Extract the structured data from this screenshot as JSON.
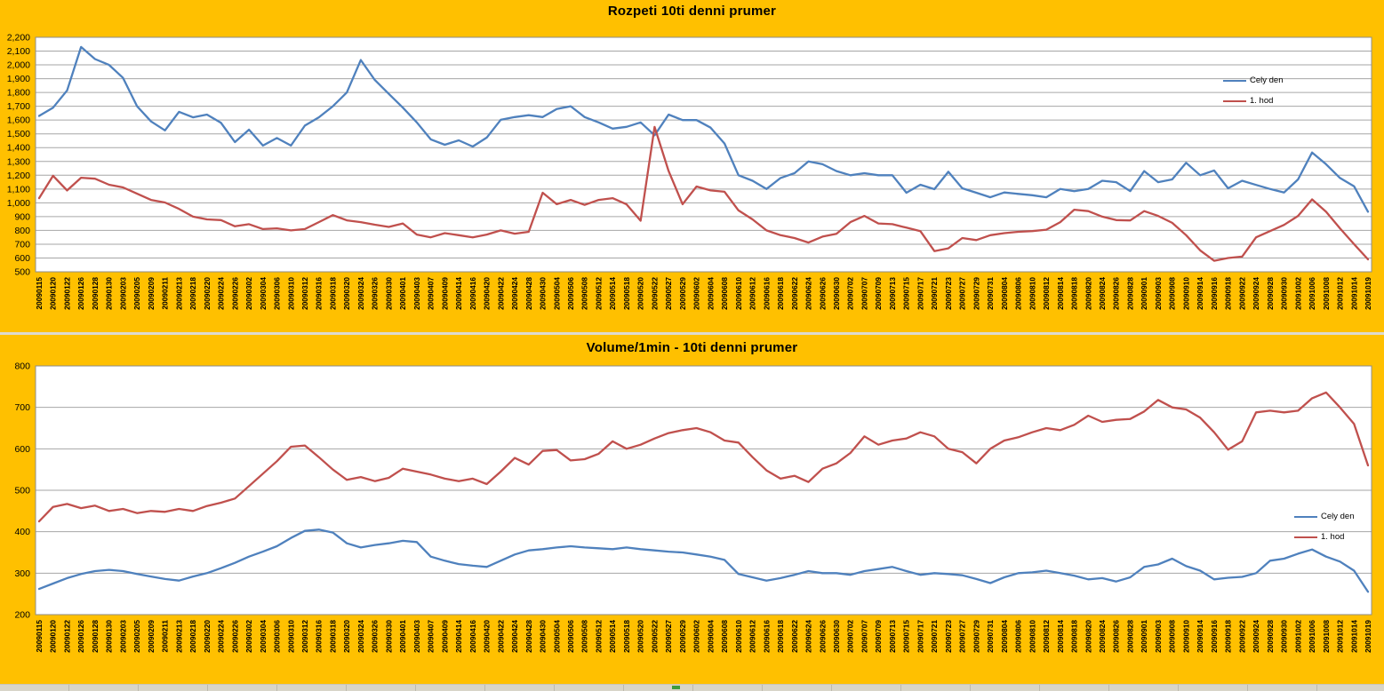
{
  "page": {
    "background_color": "#FFC000",
    "plot_background_color": "#FFFFFF",
    "gridline_color": "#A6A6A6",
    "plot_border_color": "#8C8C8C",
    "sheet_strip_color": "#D8D5C9",
    "sheet_marker_color": "#3E9B3E"
  },
  "chart_data": [
    {
      "type": "line",
      "title": "Rozpeti 10ti denni prumer",
      "ylim": [
        500,
        2200
      ],
      "ytick_interval": 100,
      "grid": true,
      "legend_position": "right-inside",
      "categories": [
        "20090115",
        "20090120",
        "20090122",
        "20090126",
        "20090128",
        "20090130",
        "20090203",
        "20090205",
        "20090209",
        "20090211",
        "20090213",
        "20090218",
        "20090220",
        "20090224",
        "20090226",
        "20090302",
        "20090304",
        "20090306",
        "20090310",
        "20090312",
        "20090316",
        "20090318",
        "20090320",
        "20090324",
        "20090326",
        "20090330",
        "20090401",
        "20090403",
        "20090407",
        "20090409",
        "20090414",
        "20090416",
        "20090420",
        "20090422",
        "20090424",
        "20090428",
        "20090430",
        "20090504",
        "20090506",
        "20090508",
        "20090512",
        "20090514",
        "20090518",
        "20090520",
        "20090522",
        "20090527",
        "20090529",
        "20090602",
        "20090604",
        "20090608",
        "20090610",
        "20090612",
        "20090616",
        "20090618",
        "20090622",
        "20090624",
        "20090626",
        "20090630",
        "20090702",
        "20090707",
        "20090709",
        "20090713",
        "20090715",
        "20090717",
        "20090721",
        "20090723",
        "20090727",
        "20090729",
        "20090731",
        "20090804",
        "20090806",
        "20090810",
        "20090812",
        "20090814",
        "20090818",
        "20090820",
        "20090824",
        "20090826",
        "20090828",
        "20090901",
        "20090903",
        "20090908",
        "20090910",
        "20090914",
        "20090916",
        "20090918",
        "20090922",
        "20090924",
        "20090928",
        "20090930",
        "20091002",
        "20091006",
        "20091008",
        "20091012",
        "20091014",
        "20091019"
      ],
      "series": [
        {
          "name": "Cely den",
          "color": "#4F81BD",
          "values": [
            1630,
            1690,
            1815,
            2130,
            2042,
            2000,
            1906,
            1700,
            1590,
            1525,
            1660,
            1620,
            1640,
            1580,
            1440,
            1530,
            1415,
            1470,
            1415,
            1560,
            1620,
            1700,
            1800,
            2035,
            1890,
            1790,
            1690,
            1583,
            1460,
            1421,
            1453,
            1408,
            1473,
            1602,
            1622,
            1635,
            1622,
            1680,
            1700,
            1622,
            1583,
            1538,
            1551,
            1583,
            1490,
            1640,
            1600,
            1600,
            1545,
            1430,
            1200,
            1160,
            1100,
            1180,
            1215,
            1300,
            1280,
            1230,
            1200,
            1215,
            1200,
            1200,
            1073,
            1131,
            1099,
            1225,
            1105,
            1073,
            1040,
            1075,
            1065,
            1055,
            1040,
            1100,
            1085,
            1100,
            1160,
            1150,
            1085,
            1230,
            1150,
            1170,
            1290,
            1200,
            1235,
            1105,
            1160,
            1130,
            1100,
            1075,
            1170,
            1365,
            1280,
            1180,
            1120,
            935
          ]
        },
        {
          "name": "1. hod",
          "color": "#C0504D",
          "values": [
            1034,
            1196,
            1090,
            1182,
            1175,
            1131,
            1112,
            1066,
            1021,
            1002,
            956,
            900,
            880,
            875,
            830,
            845,
            810,
            815,
            800,
            810,
            860,
            911,
            873,
            860,
            841,
            825,
            850,
            770,
            750,
            780,
            765,
            750,
            770,
            800,
            776,
            790,
            1073,
            990,
            1021,
            985,
            1021,
            1034,
            989,
            870,
            1550,
            1230,
            990,
            1118,
            1090,
            1080,
            945,
            880,
            800,
            765,
            745,
            712,
            755,
            775,
            860,
            905,
            850,
            845,
            820,
            795,
            650,
            670,
            745,
            730,
            765,
            780,
            790,
            795,
            805,
            860,
            950,
            940,
            900,
            875,
            872,
            940,
            905,
            855,
            765,
            655,
            580,
            600,
            610,
            750,
            795,
            840,
            905,
            1025,
            935,
            815,
            700,
            590
          ]
        }
      ]
    },
    {
      "type": "line",
      "title": "Volume/1min - 10ti denni prumer",
      "ylim": [
        200,
        800
      ],
      "ytick_interval": 100,
      "grid": true,
      "legend_position": "right-inside",
      "categories": [
        "20090115",
        "20090120",
        "20090122",
        "20090126",
        "20090128",
        "20090130",
        "20090203",
        "20090205",
        "20090209",
        "20090211",
        "20090213",
        "20090218",
        "20090220",
        "20090224",
        "20090226",
        "20090302",
        "20090304",
        "20090306",
        "20090310",
        "20090312",
        "20090316",
        "20090318",
        "20090320",
        "20090324",
        "20090326",
        "20090330",
        "20090401",
        "20090403",
        "20090407",
        "20090409",
        "20090414",
        "20090416",
        "20090420",
        "20090422",
        "20090424",
        "20090428",
        "20090430",
        "20090504",
        "20090506",
        "20090508",
        "20090512",
        "20090514",
        "20090518",
        "20090520",
        "20090522",
        "20090527",
        "20090529",
        "20090602",
        "20090604",
        "20090608",
        "20090610",
        "20090612",
        "20090616",
        "20090618",
        "20090622",
        "20090624",
        "20090626",
        "20090630",
        "20090702",
        "20090707",
        "20090709",
        "20090713",
        "20090715",
        "20090717",
        "20090721",
        "20090723",
        "20090727",
        "20090729",
        "20090731",
        "20090804",
        "20090806",
        "20090810",
        "20090812",
        "20090814",
        "20090818",
        "20090820",
        "20090824",
        "20090826",
        "20090828",
        "20090901",
        "20090903",
        "20090908",
        "20090910",
        "20090914",
        "20090916",
        "20090918",
        "20090922",
        "20090924",
        "20090928",
        "20090930",
        "20091002",
        "20091006",
        "20091008",
        "20091012",
        "20091014",
        "20091019"
      ],
      "series": [
        {
          "name": "Cely den",
          "color": "#4F81BD",
          "values": [
            262,
            275,
            288,
            298,
            305,
            308,
            305,
            298,
            292,
            286,
            282,
            292,
            300,
            312,
            325,
            340,
            352,
            365,
            385,
            402,
            405,
            398,
            372,
            362,
            368,
            372,
            378,
            375,
            340,
            330,
            322,
            318,
            315,
            330,
            345,
            355,
            358,
            362,
            365,
            362,
            360,
            358,
            362,
            358,
            355,
            352,
            350,
            345,
            340,
            332,
            298,
            290,
            282,
            288,
            296,
            305,
            300,
            300,
            296,
            305,
            310,
            315,
            305,
            296,
            300,
            298,
            295,
            286,
            276,
            290,
            300,
            302,
            306,
            300,
            294,
            285,
            288,
            280,
            290,
            315,
            321,
            335,
            317,
            306,
            285,
            289,
            291,
            300,
            330,
            335,
            347,
            357,
            340,
            328,
            306,
            255
          ]
        },
        {
          "name": "1. hod",
          "color": "#C0504D",
          "values": [
            425,
            460,
            467,
            457,
            463,
            450,
            455,
            445,
            450,
            448,
            455,
            450,
            462,
            470,
            480,
            510,
            540,
            570,
            605,
            608,
            580,
            550,
            525,
            532,
            522,
            530,
            552,
            545,
            538,
            528,
            522,
            528,
            515,
            545,
            578,
            562,
            595,
            597,
            572,
            575,
            588,
            618,
            600,
            610,
            625,
            638,
            645,
            650,
            640,
            620,
            615,
            580,
            548,
            528,
            535,
            520,
            552,
            565,
            590,
            630,
            610,
            620,
            625,
            640,
            630,
            600,
            592,
            565,
            600,
            620,
            628,
            640,
            650,
            645,
            658,
            680,
            665,
            670,
            672,
            690,
            718,
            700,
            695,
            675,
            640,
            598,
            618,
            688,
            692,
            688,
            692,
            722,
            736,
            700,
            660,
            560
          ]
        }
      ]
    }
  ]
}
